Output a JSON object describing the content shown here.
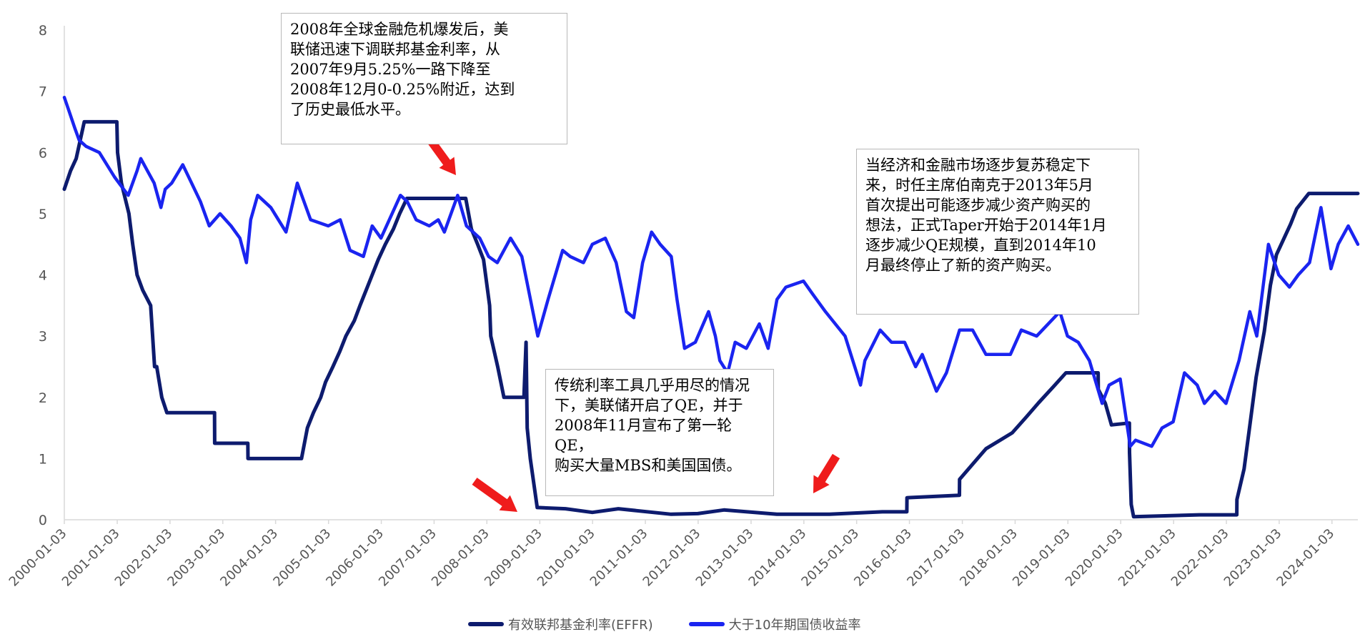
{
  "chart_data": {
    "type": "line",
    "title": "",
    "xlabel": "",
    "ylabel": "",
    "ylim": [
      0,
      8
    ],
    "yticks": [
      "0",
      "1",
      "2",
      "3",
      "4",
      "5",
      "6",
      "7",
      "8"
    ],
    "xticks": [
      "2000-01-03",
      "2001-01-03",
      "2002-01-03",
      "2003-01-03",
      "2004-01-03",
      "2005-01-03",
      "2006-01-03",
      "2007-01-03",
      "2008-01-03",
      "2009-01-03",
      "2010-01-03",
      "2011-01-03",
      "2012-01-03",
      "2013-01-03",
      "2014-01-03",
      "2015-01-03",
      "2016-01-03",
      "2017-01-03",
      "2018-01-03",
      "2019-01-03",
      "2020-01-03",
      "2021-01-03",
      "2022-01-03",
      "2023-01-03",
      "2024-01-03"
    ],
    "xlim": [
      "2000-01-03",
      "2024-06-30"
    ],
    "grid": false,
    "legend_position": "bottom-center",
    "series": [
      {
        "name": "有效联邦基金利率(EFFR)",
        "color": "#0d1b6e",
        "points": [
          [
            "2000-01-03",
            5.4
          ],
          [
            "2000-02-15",
            5.7
          ],
          [
            "2000-03-25",
            5.9
          ],
          [
            "2000-05-20",
            6.5
          ],
          [
            "2000-12-31",
            6.5
          ],
          [
            "2001-01-05",
            6.0
          ],
          [
            "2001-02-01",
            5.5
          ],
          [
            "2001-03-25",
            5.0
          ],
          [
            "2001-04-20",
            4.5
          ],
          [
            "2001-05-20",
            4.0
          ],
          [
            "2001-06-28",
            3.75
          ],
          [
            "2001-08-22",
            3.5
          ],
          [
            "2001-09-18",
            2.5
          ],
          [
            "2001-10-03",
            2.5
          ],
          [
            "2001-11-07",
            2.0
          ],
          [
            "2001-12-12",
            1.75
          ],
          [
            "2002-06-01",
            1.75
          ],
          [
            "2002-11-07",
            1.75
          ],
          [
            "2002-11-08",
            1.25
          ],
          [
            "2003-06-25",
            1.25
          ],
          [
            "2003-06-26",
            1.0
          ],
          [
            "2004-06-30",
            1.0
          ],
          [
            "2004-08-10",
            1.5
          ],
          [
            "2004-09-21",
            1.75
          ],
          [
            "2004-11-10",
            2.0
          ],
          [
            "2004-12-14",
            2.25
          ],
          [
            "2005-02-02",
            2.5
          ],
          [
            "2005-03-22",
            2.75
          ],
          [
            "2005-05-03",
            3.0
          ],
          [
            "2005-06-30",
            3.25
          ],
          [
            "2005-08-09",
            3.5
          ],
          [
            "2005-09-20",
            3.75
          ],
          [
            "2005-11-01",
            4.0
          ],
          [
            "2005-12-13",
            4.25
          ],
          [
            "2006-01-31",
            4.5
          ],
          [
            "2006-03-28",
            4.75
          ],
          [
            "2006-05-10",
            5.0
          ],
          [
            "2006-06-29",
            5.25
          ],
          [
            "2007-08-10",
            5.25
          ],
          [
            "2007-09-18",
            4.75
          ],
          [
            "2007-10-31",
            4.5
          ],
          [
            "2007-12-11",
            4.25
          ],
          [
            "2008-01-22",
            3.5
          ],
          [
            "2008-01-30",
            3.0
          ],
          [
            "2008-03-18",
            2.5
          ],
          [
            "2008-04-30",
            2.0
          ],
          [
            "2008-09-15",
            2.0
          ],
          [
            "2008-09-30",
            2.9
          ],
          [
            "2008-10-08",
            1.5
          ],
          [
            "2008-10-29",
            1.0
          ],
          [
            "2008-12-16",
            0.2
          ],
          [
            "2009-06-30",
            0.18
          ],
          [
            "2010-01-01",
            0.12
          ],
          [
            "2010-06-30",
            0.18
          ],
          [
            "2011-06-30",
            0.09
          ],
          [
            "2012-01-01",
            0.1
          ],
          [
            "2012-06-30",
            0.16
          ],
          [
            "2013-06-30",
            0.09
          ],
          [
            "2014-06-30",
            0.09
          ],
          [
            "2015-06-30",
            0.13
          ],
          [
            "2015-12-16",
            0.13
          ],
          [
            "2015-12-17",
            0.36
          ],
          [
            "2016-12-14",
            0.4
          ],
          [
            "2016-12-15",
            0.66
          ],
          [
            "2017-03-16",
            0.91
          ],
          [
            "2017-06-15",
            1.16
          ],
          [
            "2017-12-14",
            1.42
          ],
          [
            "2018-03-22",
            1.68
          ],
          [
            "2018-06-14",
            1.91
          ],
          [
            "2018-09-27",
            2.18
          ],
          [
            "2018-12-20",
            2.4
          ],
          [
            "2019-07-31",
            2.4
          ],
          [
            "2019-08-01",
            2.13
          ],
          [
            "2019-09-19",
            1.9
          ],
          [
            "2019-10-31",
            1.55
          ],
          [
            "2020-03-03",
            1.58
          ],
          [
            "2020-03-04",
            1.1
          ],
          [
            "2020-03-16",
            0.25
          ],
          [
            "2020-04-01",
            0.05
          ],
          [
            "2021-06-30",
            0.08
          ],
          [
            "2022-03-16",
            0.08
          ],
          [
            "2022-03-17",
            0.33
          ],
          [
            "2022-05-05",
            0.83
          ],
          [
            "2022-06-16",
            1.58
          ],
          [
            "2022-07-28",
            2.33
          ],
          [
            "2022-09-22",
            3.08
          ],
          [
            "2022-11-03",
            3.83
          ],
          [
            "2022-12-15",
            4.33
          ],
          [
            "2023-02-02",
            4.58
          ],
          [
            "2023-03-23",
            4.83
          ],
          [
            "2023-05-04",
            5.08
          ],
          [
            "2023-07-27",
            5.33
          ],
          [
            "2024-06-30",
            5.33
          ]
        ]
      },
      {
        "name": "大于10年期国债收益率",
        "color": "#1a24f0",
        "points": [
          [
            "2000-01-03",
            6.9
          ],
          [
            "2000-02-01",
            6.7
          ],
          [
            "2000-03-15",
            6.4
          ],
          [
            "2000-04-15",
            6.2
          ],
          [
            "2000-06-01",
            6.1
          ],
          [
            "2000-09-01",
            6.0
          ],
          [
            "2000-12-15",
            5.6
          ],
          [
            "2001-01-15",
            5.5
          ],
          [
            "2001-03-20",
            5.3
          ],
          [
            "2001-05-20",
            5.7
          ],
          [
            "2001-06-15",
            5.9
          ],
          [
            "2001-07-31",
            5.7
          ],
          [
            "2001-09-15",
            5.5
          ],
          [
            "2001-11-01",
            5.1
          ],
          [
            "2001-12-01",
            5.4
          ],
          [
            "2002-01-15",
            5.5
          ],
          [
            "2002-04-01",
            5.8
          ],
          [
            "2002-06-01",
            5.5
          ],
          [
            "2002-08-01",
            5.2
          ],
          [
            "2002-10-01",
            4.8
          ],
          [
            "2002-12-15",
            5.0
          ],
          [
            "2003-03-01",
            4.8
          ],
          [
            "2003-05-01",
            4.6
          ],
          [
            "2003-06-15",
            4.2
          ],
          [
            "2003-07-15",
            4.9
          ],
          [
            "2003-09-01",
            5.3
          ],
          [
            "2003-12-01",
            5.1
          ],
          [
            "2004-03-15",
            4.7
          ],
          [
            "2004-06-01",
            5.5
          ],
          [
            "2004-09-01",
            4.9
          ],
          [
            "2005-01-01",
            4.8
          ],
          [
            "2005-03-25",
            4.9
          ],
          [
            "2005-06-01",
            4.4
          ],
          [
            "2005-09-01",
            4.3
          ],
          [
            "2005-11-01",
            4.8
          ],
          [
            "2006-01-01",
            4.6
          ],
          [
            "2006-05-15",
            5.3
          ],
          [
            "2006-07-01",
            5.2
          ],
          [
            "2006-09-01",
            4.9
          ],
          [
            "2006-12-01",
            4.8
          ],
          [
            "2007-02-01",
            4.9
          ],
          [
            "2007-03-15",
            4.7
          ],
          [
            "2007-06-15",
            5.3
          ],
          [
            "2007-08-15",
            4.8
          ],
          [
            "2007-11-15",
            4.6
          ],
          [
            "2008-01-15",
            4.3
          ],
          [
            "2008-03-15",
            4.2
          ],
          [
            "2008-06-15",
            4.6
          ],
          [
            "2008-09-01",
            4.3
          ],
          [
            "2008-12-20",
            3.0
          ],
          [
            "2009-03-01",
            3.6
          ],
          [
            "2009-06-10",
            4.4
          ],
          [
            "2009-08-01",
            4.3
          ],
          [
            "2009-11-01",
            4.2
          ],
          [
            "2010-01-01",
            4.5
          ],
          [
            "2010-04-01",
            4.6
          ],
          [
            "2010-06-15",
            4.2
          ],
          [
            "2010-08-25",
            3.4
          ],
          [
            "2010-10-15",
            3.3
          ],
          [
            "2010-12-15",
            4.2
          ],
          [
            "2011-02-15",
            4.7
          ],
          [
            "2011-04-15",
            4.5
          ],
          [
            "2011-07-01",
            4.3
          ],
          [
            "2011-08-10",
            3.6
          ],
          [
            "2011-10-01",
            2.8
          ],
          [
            "2011-12-15",
            2.9
          ],
          [
            "2012-03-15",
            3.4
          ],
          [
            "2012-05-01",
            3.0
          ],
          [
            "2012-06-01",
            2.6
          ],
          [
            "2012-07-25",
            2.4
          ],
          [
            "2012-09-15",
            2.9
          ],
          [
            "2012-12-01",
            2.8
          ],
          [
            "2013-03-01",
            3.2
          ],
          [
            "2013-05-01",
            2.8
          ],
          [
            "2013-07-01",
            3.6
          ],
          [
            "2013-09-01",
            3.8
          ],
          [
            "2013-12-31",
            3.9
          ],
          [
            "2014-03-01",
            3.7
          ],
          [
            "2014-06-01",
            3.4
          ],
          [
            "2014-10-15",
            3.0
          ],
          [
            "2015-01-30",
            2.2
          ],
          [
            "2015-03-01",
            2.6
          ],
          [
            "2015-06-15",
            3.1
          ],
          [
            "2015-09-01",
            2.9
          ],
          [
            "2015-12-01",
            2.9
          ],
          [
            "2016-02-15",
            2.5
          ],
          [
            "2016-04-01",
            2.7
          ],
          [
            "2016-07-08",
            2.1
          ],
          [
            "2016-09-15",
            2.4
          ],
          [
            "2016-12-15",
            3.1
          ],
          [
            "2017-03-15",
            3.1
          ],
          [
            "2017-06-15",
            2.7
          ],
          [
            "2017-09-08",
            2.7
          ],
          [
            "2017-12-01",
            2.7
          ],
          [
            "2018-02-15",
            3.1
          ],
          [
            "2018-06-01",
            3.0
          ],
          [
            "2018-11-08",
            3.4
          ],
          [
            "2018-12-31",
            3.0
          ],
          [
            "2019-03-15",
            2.9
          ],
          [
            "2019-06-01",
            2.6
          ],
          [
            "2019-08-28",
            1.9
          ],
          [
            "2019-10-15",
            2.2
          ],
          [
            "2019-12-31",
            2.3
          ],
          [
            "2020-03-09",
            1.2
          ],
          [
            "2020-04-15",
            1.3
          ],
          [
            "2020-08-04",
            1.2
          ],
          [
            "2020-10-15",
            1.5
          ],
          [
            "2020-12-31",
            1.6
          ],
          [
            "2021-03-19",
            2.4
          ],
          [
            "2021-06-15",
            2.2
          ],
          [
            "2021-08-04",
            1.9
          ],
          [
            "2021-10-15",
            2.1
          ],
          [
            "2021-12-31",
            1.9
          ],
          [
            "2022-03-31",
            2.6
          ],
          [
            "2022-06-14",
            3.4
          ],
          [
            "2022-08-01",
            3.0
          ],
          [
            "2022-10-21",
            4.5
          ],
          [
            "2022-12-31",
            4.0
          ],
          [
            "2023-03-15",
            3.8
          ],
          [
            "2023-05-15",
            4.0
          ],
          [
            "2023-08-01",
            4.2
          ],
          [
            "2023-10-19",
            5.1
          ],
          [
            "2023-12-27",
            4.1
          ],
          [
            "2024-02-15",
            4.5
          ],
          [
            "2024-04-25",
            4.8
          ],
          [
            "2024-06-30",
            4.5
          ]
        ]
      }
    ]
  },
  "annotations": [
    {
      "lines": [
        "2008年全球金融危机爆发后，美",
        "联储迅速下调联邦基金利率，从",
        "2007年9月5.25%一路下降至",
        "2008年12月0-0.25%附近，达到",
        "了历史最低水平。"
      ]
    },
    {
      "lines": [
        "传统利率工具几乎用尽的情况",
        "下，美联储开启了QE，并于",
        "2008年11月宣布了第一轮QE，",
        "购买大量MBS和美国国债。"
      ]
    },
    {
      "lines": [
        "当经济和金融市场逐步复苏稳定下",
        "来，时任主席伯南克于2013年5月",
        "首次提出可能逐步减少资产购买的",
        "想法，正式Taper开始于2014年1月",
        "逐步减少QE规模，直到2014年10",
        "月最终停止了新的资产购买。"
      ]
    }
  ],
  "arrow_color": "#ef1c1c"
}
